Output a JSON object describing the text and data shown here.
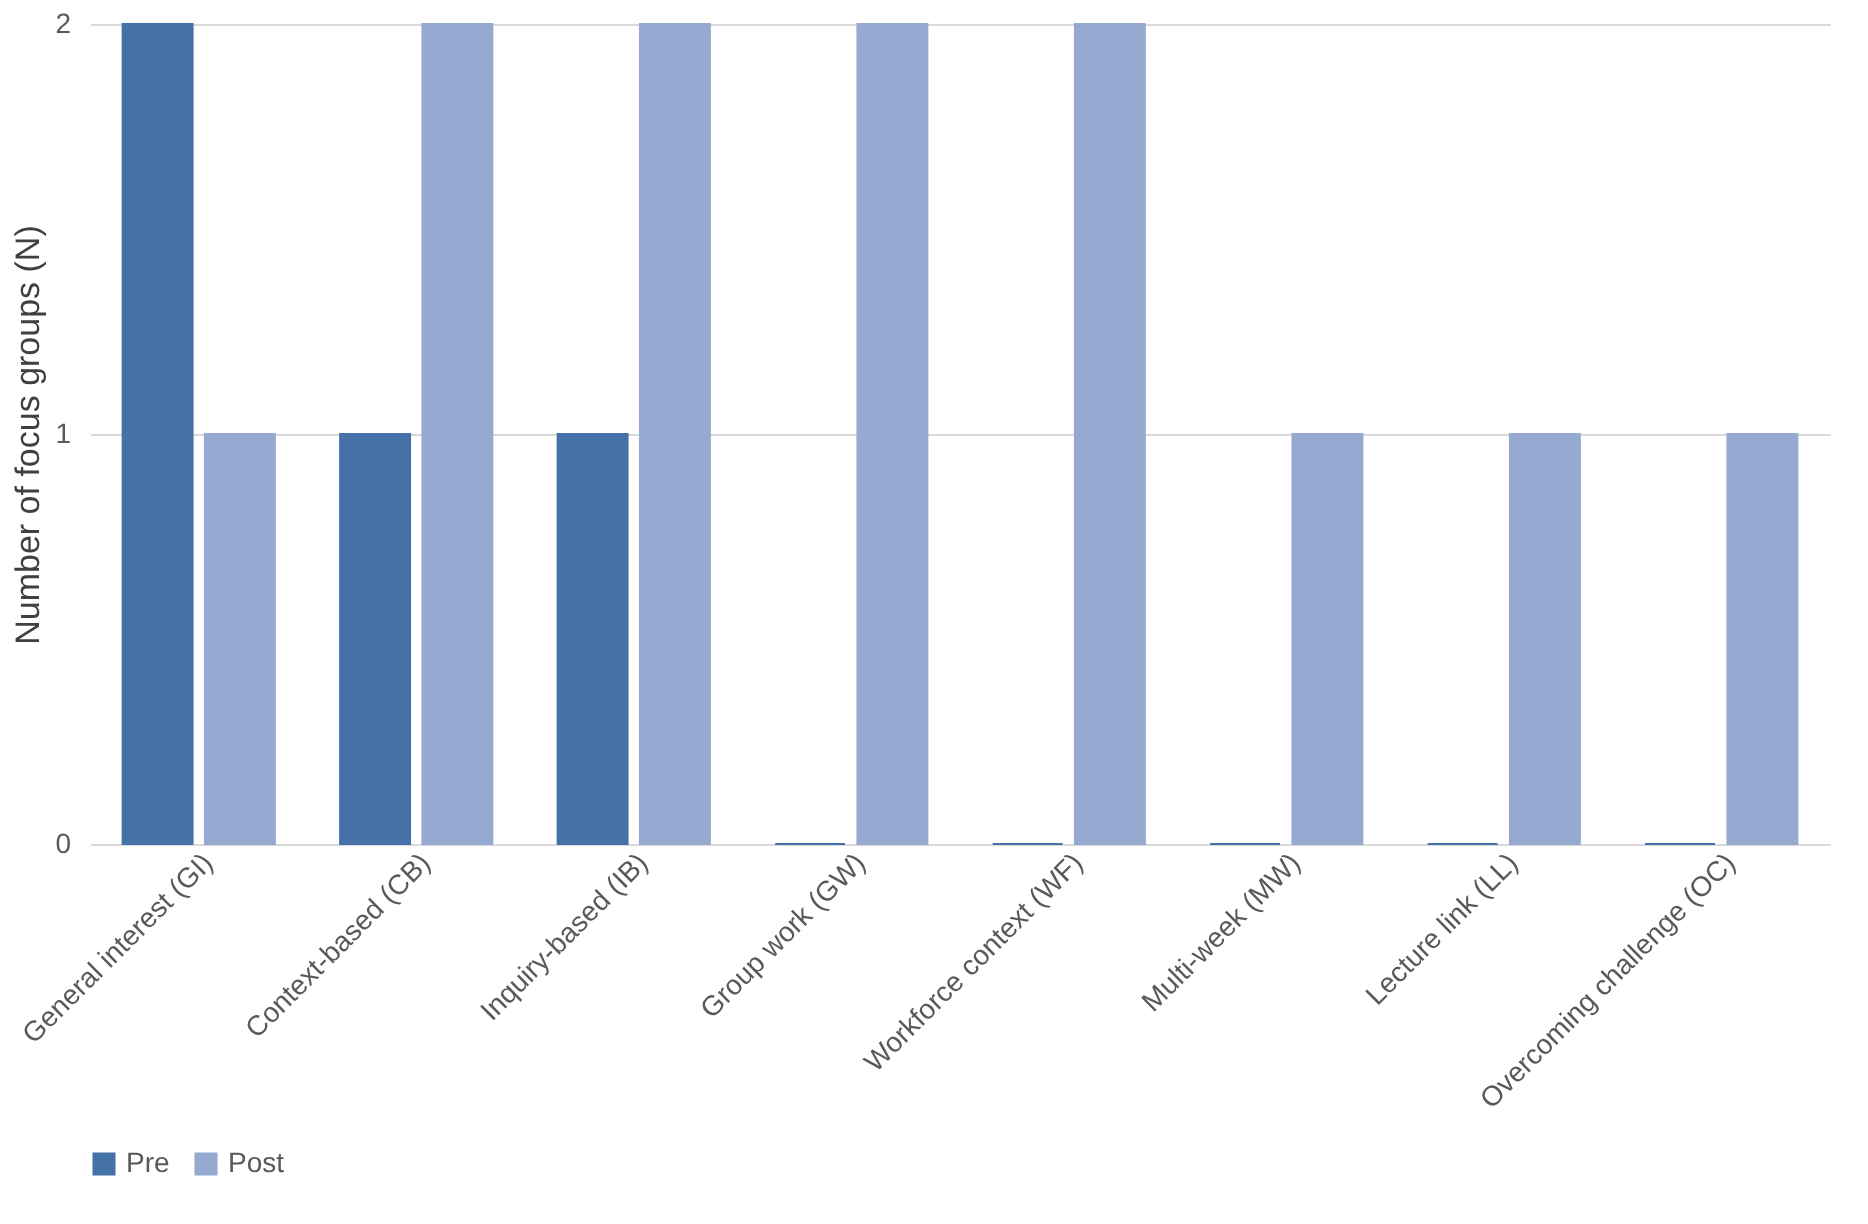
{
  "chart_data": {
    "type": "bar",
    "ylabel": "Number of focus groups (N)",
    "categories": [
      "General interest (GI)",
      "Context-based (CB)",
      "Inquiry-based (IB)",
      "Group work (GW)",
      "Workforce context (WF)",
      "Multi-week (MW)",
      "Lecture link (LL)",
      "Overcoming challenge (OC)"
    ],
    "series": [
      {
        "name": "Pre",
        "color": "#4472a8",
        "values": [
          2,
          1,
          1,
          0,
          0,
          0,
          0,
          0
        ]
      },
      {
        "name": "Post",
        "color": "#95a9d1",
        "values": [
          1,
          2,
          2,
          2,
          2,
          1,
          1,
          1
        ]
      }
    ],
    "ylim": [
      0,
      2
    ],
    "yticks": [
      0,
      1,
      2
    ],
    "grid": "y",
    "legend": "bottom"
  }
}
